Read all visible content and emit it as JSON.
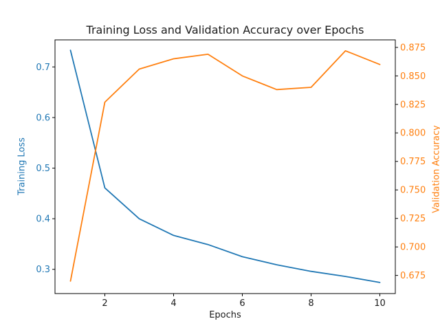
{
  "chart_data": {
    "type": "line",
    "title": "Training Loss and Validation Accuracy over Epochs",
    "xlabel": "Epochs",
    "ylabel_left": "Training Loss",
    "ylabel_right": "Validation Accuracy",
    "x": [
      1,
      2,
      3,
      4,
      5,
      6,
      7,
      8,
      9,
      10
    ],
    "series": [
      {
        "name": "Training Loss",
        "axis": "left",
        "color": "#1f77b4",
        "values": [
          0.733,
          0.461,
          0.4,
          0.367,
          0.349,
          0.325,
          0.309,
          0.296,
          0.286,
          0.274
        ]
      },
      {
        "name": "Validation Accuracy",
        "axis": "right",
        "color": "#ff7f0e",
        "values": [
          0.67,
          0.827,
          0.856,
          0.865,
          0.869,
          0.85,
          0.838,
          0.84,
          0.872,
          0.86
        ]
      }
    ],
    "xlim": [
      0.55,
      10.45
    ],
    "ylim_left": [
      0.2521,
      0.7535
    ],
    "ylim_right": [
      0.6591,
      0.8816
    ],
    "xticks": [
      "2",
      "4",
      "6",
      "8",
      "10"
    ],
    "yticks_left": [
      "0.3",
      "0.4",
      "0.5",
      "0.6",
      "0.7"
    ],
    "yticks_right": [
      "0.675",
      "0.700",
      "0.725",
      "0.750",
      "0.775",
      "0.800",
      "0.825",
      "0.850",
      "0.875"
    ],
    "grid": false,
    "legend": "none",
    "colors": {
      "left_axis": "#1f77b4",
      "right_axis": "#ff7f0e",
      "spine": "#000000",
      "x_tick_label": "#1a1a1a",
      "background": "#ffffff"
    }
  }
}
